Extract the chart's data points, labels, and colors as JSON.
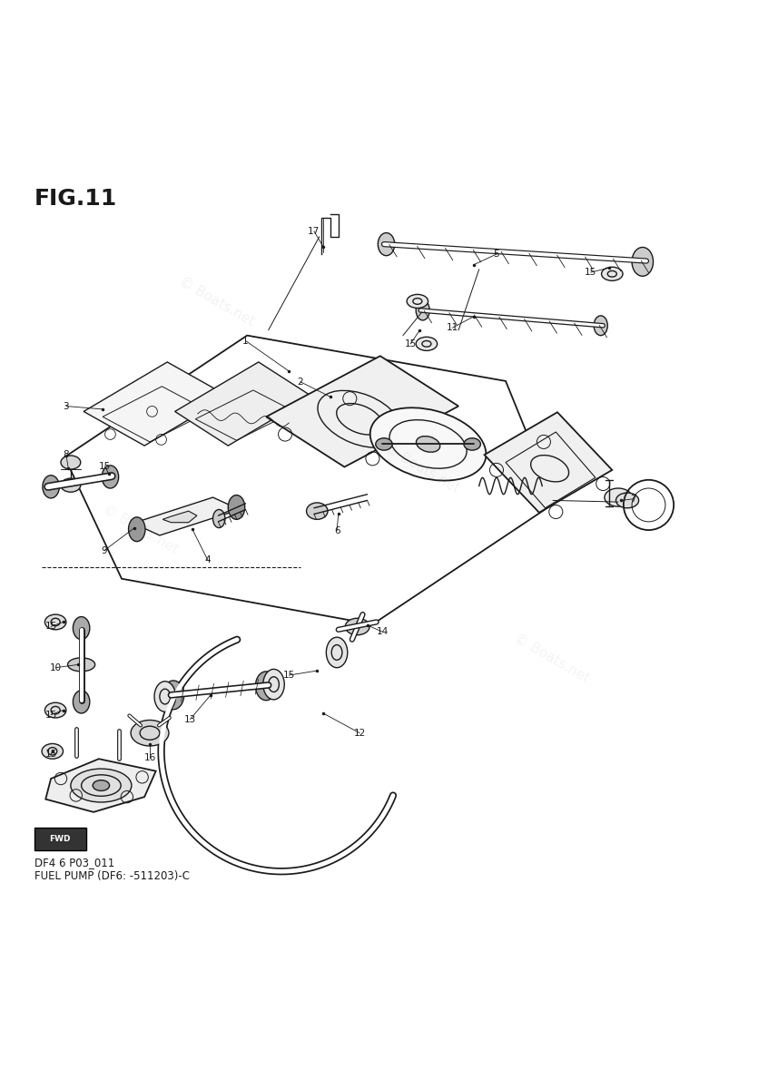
{
  "title": "FIG.11",
  "subtitle_line1": "DF4 6 P03_011",
  "subtitle_line2": "FUEL PUMP (DF6: -511203)-C",
  "bg_color": "#ffffff",
  "line_color": "#1a1a1a",
  "fig_width": 8.46,
  "fig_height": 12.0,
  "dpi": 100
}
